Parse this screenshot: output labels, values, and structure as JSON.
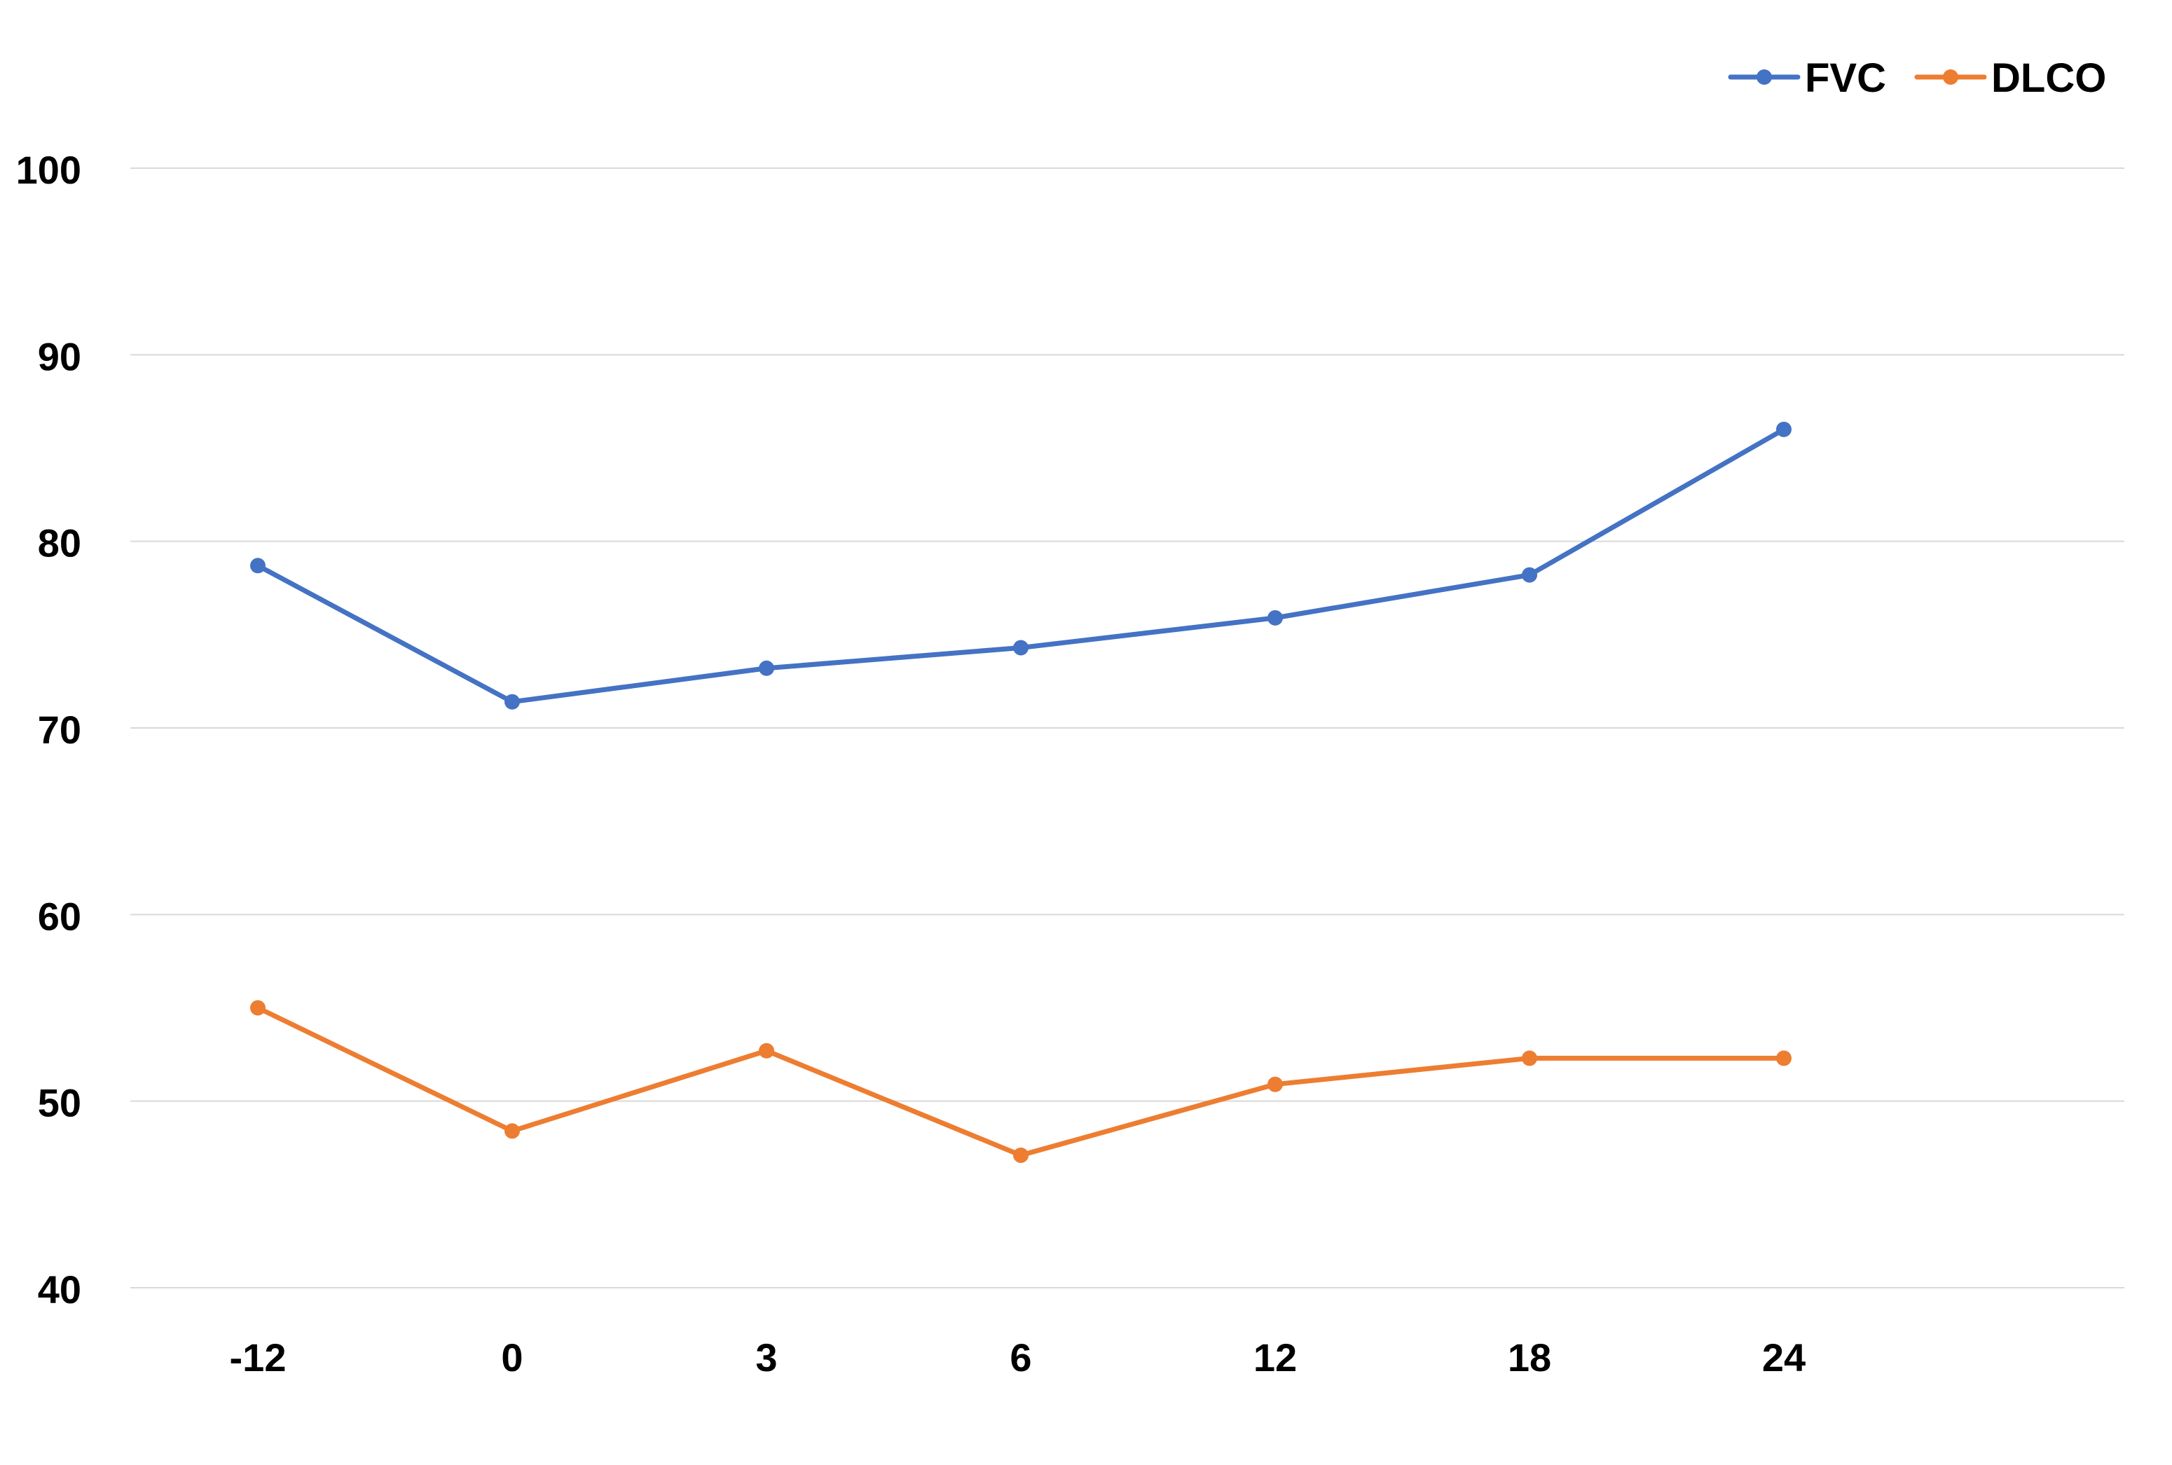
{
  "chart_data": {
    "type": "line",
    "title": "",
    "xlabel": "",
    "ylabel": "",
    "categories": [
      "-12",
      "0",
      "3",
      "6",
      "12",
      "18",
      "24"
    ],
    "ylim": [
      40,
      100
    ],
    "yticks": [
      "40",
      "50",
      "60",
      "70",
      "80",
      "90",
      "100"
    ],
    "grid": true,
    "legend_position": "top-right",
    "series": [
      {
        "name": "FVC",
        "color": "#4472C4",
        "values": [
          78.7,
          71.4,
          73.2,
          74.3,
          75.9,
          78.2,
          86.0
        ]
      },
      {
        "name": "DLCO",
        "color": "#ED7D31",
        "values": [
          55.0,
          48.4,
          52.7,
          47.1,
          50.9,
          52.3,
          52.3
        ]
      }
    ]
  }
}
